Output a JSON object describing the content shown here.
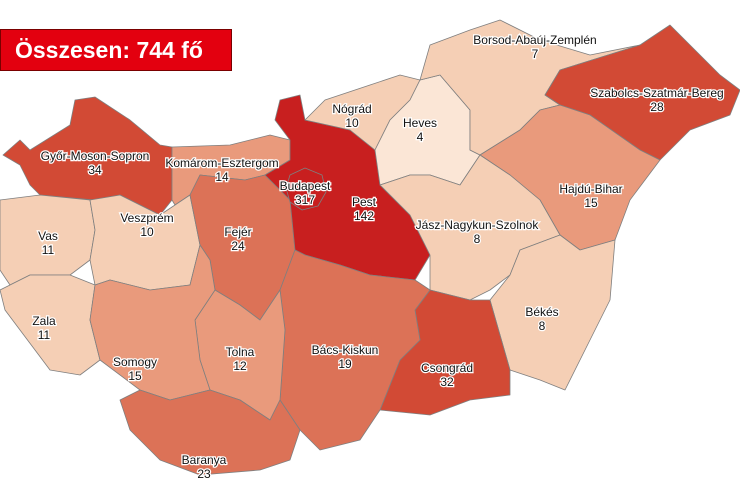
{
  "total_label": "Összesen: 744 fő",
  "colors": {
    "banner": "#e3000f",
    "scale": [
      "#fbe6d6",
      "#f5cfb5",
      "#e99a7c",
      "#dc7257",
      "#d24a35",
      "#c81f1f"
    ]
  },
  "counties": [
    {
      "id": "gyor",
      "name": "Győr-Moson-Sopron",
      "value": 34
    },
    {
      "id": "komarom",
      "name": "Komárom-Esztergom",
      "value": 14
    },
    {
      "id": "vas",
      "name": "Vas",
      "value": 11
    },
    {
      "id": "zala",
      "name": "Zala",
      "value": 11
    },
    {
      "id": "veszprem",
      "name": "Veszprém",
      "value": 10
    },
    {
      "id": "fejer",
      "name": "Fejér",
      "value": 24
    },
    {
      "id": "pest",
      "name": "Pest",
      "value": 142
    },
    {
      "id": "budapest",
      "name": "Budapest",
      "value": 317
    },
    {
      "id": "nograd",
      "name": "Nógrád",
      "value": 10
    },
    {
      "id": "heves",
      "name": "Heves",
      "value": 4
    },
    {
      "id": "borsod",
      "name": "Borsod-Abaúj-Zemplén",
      "value": 7
    },
    {
      "id": "szabolcs",
      "name": "Szabolcs-Szatmár-Bereg",
      "value": 28
    },
    {
      "id": "hajdu",
      "name": "Hajdú-Bihar",
      "value": 15
    },
    {
      "id": "jasz",
      "name": "Jász-Nagykun-Szolnok",
      "value": 8
    },
    {
      "id": "bekes",
      "name": "Békés",
      "value": 8
    },
    {
      "id": "csongrad",
      "name": "Csongrád",
      "value": 32
    },
    {
      "id": "bacs",
      "name": "Bács-Kiskun",
      "value": 19
    },
    {
      "id": "tolna",
      "name": "Tolna",
      "value": 12
    },
    {
      "id": "somogy",
      "name": "Somogy",
      "value": 15
    },
    {
      "id": "baranya",
      "name": "Baranya",
      "value": 23
    }
  ]
}
